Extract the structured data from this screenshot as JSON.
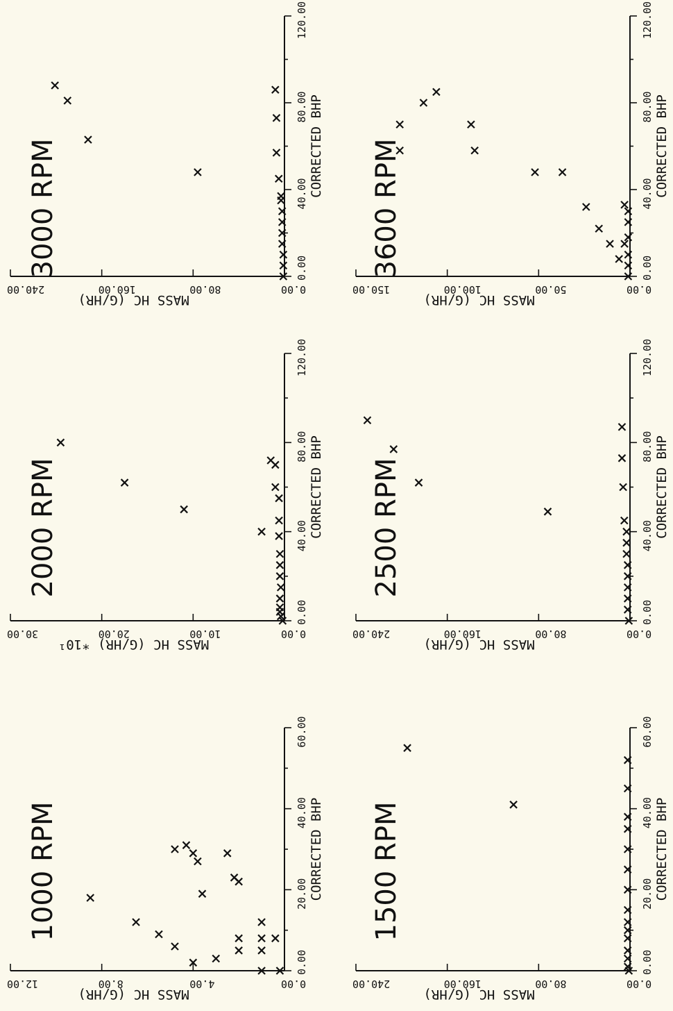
{
  "page": {
    "background": "#fbf9ec",
    "ink": "#111111"
  },
  "chart_data": [
    {
      "type": "scatter",
      "title": "1000 RPM",
      "xlabel": "CORRECTED BHP",
      "ylabel": "MASS HC (G/HR)",
      "ylabel_multiplier": "",
      "xlim": [
        0,
        60
      ],
      "ylim": [
        0,
        12
      ],
      "x_ticks": [
        "0.00",
        "20.00",
        "40.00",
        "60.00"
      ],
      "y_ticks": [
        "0.00",
        "4.00",
        "8.00",
        "12.00"
      ],
      "marker": "x",
      "points": [
        [
          0,
          0.2
        ],
        [
          0,
          1.0
        ],
        [
          2,
          4.0
        ],
        [
          3,
          3.0
        ],
        [
          5,
          1.0
        ],
        [
          5,
          2.0
        ],
        [
          6,
          4.8
        ],
        [
          8,
          0.4
        ],
        [
          8,
          1.0
        ],
        [
          8,
          2.0
        ],
        [
          9,
          5.5
        ],
        [
          12,
          1.0
        ],
        [
          12,
          6.5
        ],
        [
          18,
          8.5
        ],
        [
          19,
          3.6
        ],
        [
          22,
          2.0
        ],
        [
          23,
          2.2
        ],
        [
          27,
          3.8
        ],
        [
          29,
          2.5
        ],
        [
          29,
          4.0
        ],
        [
          30,
          4.8
        ],
        [
          31,
          4.3
        ]
      ]
    },
    {
      "type": "scatter",
      "title": "2000 RPM",
      "xlabel": "CORRECTED BHP",
      "ylabel": "MASS HC (G/HR)",
      "ylabel_multiplier": "*10¹",
      "xlim": [
        0,
        120
      ],
      "ylim": [
        0,
        30
      ],
      "x_ticks": [
        "0.00",
        "40.00",
        "80.00",
        "120.00"
      ],
      "y_ticks": [
        "0.00",
        "10.00",
        "20.00",
        "30.00"
      ],
      "marker": "x",
      "points": [
        [
          0,
          0.2
        ],
        [
          2,
          0.4
        ],
        [
          4,
          0.5
        ],
        [
          6,
          0.5
        ],
        [
          10,
          0.5
        ],
        [
          15,
          0.4
        ],
        [
          20,
          0.5
        ],
        [
          25,
          0.5
        ],
        [
          30,
          0.5
        ],
        [
          38,
          0.6
        ],
        [
          40,
          2.5
        ],
        [
          45,
          0.6
        ],
        [
          50,
          11.0
        ],
        [
          55,
          0.6
        ],
        [
          60,
          1.0
        ],
        [
          62,
          17.5
        ],
        [
          70,
          1.0
        ],
        [
          72,
          1.5
        ],
        [
          80,
          24.5
        ]
      ]
    },
    {
      "type": "scatter",
      "title": "3000 RPM",
      "xlabel": "CORRECTED BHP",
      "ylabel": "MASS HC (G/HR)",
      "ylabel_multiplier": "",
      "xlim": [
        0,
        120
      ],
      "ylim": [
        0,
        240
      ],
      "x_ticks": [
        "0.00",
        "40.00",
        "80.00",
        "120.00"
      ],
      "y_ticks": [
        "0.00",
        "80.00",
        "160.00",
        "240.00"
      ],
      "marker": "x",
      "points": [
        [
          0,
          1
        ],
        [
          5,
          1
        ],
        [
          10,
          1
        ],
        [
          15,
          2
        ],
        [
          20,
          2
        ],
        [
          25,
          2
        ],
        [
          30,
          2
        ],
        [
          35,
          3
        ],
        [
          37,
          3
        ],
        [
          45,
          5
        ],
        [
          48,
          76
        ],
        [
          57,
          7
        ],
        [
          63,
          172
        ],
        [
          73,
          7
        ],
        [
          81,
          190
        ],
        [
          86,
          8
        ],
        [
          88,
          201
        ]
      ]
    },
    {
      "type": "scatter",
      "title": "1500 RPM",
      "xlabel": "CORRECTED BHP",
      "ylabel": "MASS HC (G/HR)",
      "ylabel_multiplier": "",
      "xlim": [
        0,
        60
      ],
      "ylim": [
        0,
        240
      ],
      "x_ticks": [
        "0.00",
        "20.00",
        "40.00",
        "60.00"
      ],
      "y_ticks": [
        "0.00",
        "80.00",
        "160.00",
        "240.00"
      ],
      "marker": "x",
      "points": [
        [
          0,
          1
        ],
        [
          1,
          2
        ],
        [
          3,
          2
        ],
        [
          5,
          2
        ],
        [
          8,
          2
        ],
        [
          10,
          2
        ],
        [
          12,
          2
        ],
        [
          15,
          2
        ],
        [
          20,
          2
        ],
        [
          25,
          2
        ],
        [
          30,
          2
        ],
        [
          35,
          2
        ],
        [
          38,
          2
        ],
        [
          41,
          102
        ],
        [
          45,
          2
        ],
        [
          52,
          2
        ],
        [
          55,
          195
        ]
      ]
    },
    {
      "type": "scatter",
      "title": "2500 RPM",
      "xlabel": "CORRECTED BHP",
      "ylabel": "MASS HC (G/HR)",
      "ylabel_multiplier": "",
      "xlim": [
        0,
        120
      ],
      "ylim": [
        0,
        240
      ],
      "x_ticks": [
        "0.00",
        "40.00",
        "80.00",
        "120.00"
      ],
      "y_ticks": [
        "0.00",
        "80.00",
        "160.00",
        "240.00"
      ],
      "marker": "x",
      "points": [
        [
          0,
          1
        ],
        [
          5,
          2
        ],
        [
          10,
          2
        ],
        [
          15,
          2
        ],
        [
          20,
          2
        ],
        [
          25,
          2
        ],
        [
          30,
          3
        ],
        [
          35,
          3
        ],
        [
          40,
          3
        ],
        [
          45,
          5
        ],
        [
          49,
          72
        ],
        [
          60,
          6
        ],
        [
          62,
          185
        ],
        [
          73,
          7
        ],
        [
          77,
          207
        ],
        [
          87,
          7
        ],
        [
          90,
          230
        ]
      ]
    },
    {
      "type": "scatter",
      "title": "3600 RPM",
      "xlabel": "CORRECTED BHP",
      "ylabel": "MASS HC (G/HR)",
      "ylabel_multiplier": "",
      "xlim": [
        0,
        120
      ],
      "ylim": [
        0,
        150
      ],
      "x_ticks": [
        "0.00",
        "40.00",
        "80.00",
        "120.00"
      ],
      "y_ticks": [
        "0.00",
        "50.00",
        "100.00",
        "150.00"
      ],
      "marker": "x",
      "points": [
        [
          0,
          1
        ],
        [
          5,
          1
        ],
        [
          8,
          6
        ],
        [
          10,
          1
        ],
        [
          15,
          3
        ],
        [
          15,
          11
        ],
        [
          18,
          1
        ],
        [
          22,
          17
        ],
        [
          25,
          1
        ],
        [
          30,
          1
        ],
        [
          32,
          24
        ],
        [
          33,
          3
        ],
        [
          48,
          52
        ],
        [
          48,
          37
        ],
        [
          58,
          85
        ],
        [
          58,
          126
        ],
        [
          70,
          87
        ],
        [
          70,
          126
        ],
        [
          80,
          113
        ],
        [
          85,
          106
        ]
      ]
    }
  ]
}
